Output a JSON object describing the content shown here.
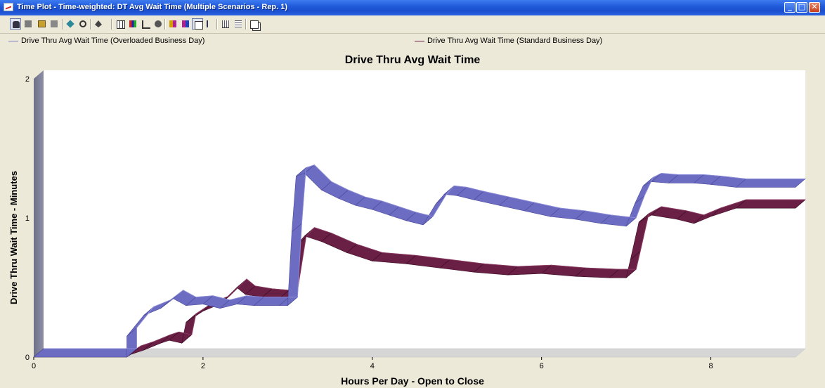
{
  "window": {
    "title": "Time Plot - Time-weighted: DT Avg Wait Time (Multiple Scenarios - Rep. 1)",
    "min_glyph": "_",
    "max_glyph": "□",
    "close_glyph": "✕"
  },
  "toolbar": {
    "icons": [
      "car-icon",
      "stop-icon",
      "open-icon",
      "gray-square-icon",
      "diamond-icon",
      "zoom-icon",
      "fill-icon",
      "grid-icon",
      "chart-color-icon",
      "axis-icon",
      "binoculars-icon",
      "palette-a-icon",
      "palette-b-icon",
      "properties-icon",
      "step-icon",
      "bars-icon",
      "list-icon",
      "copy-icon"
    ]
  },
  "colors": {
    "overloaded": "#6c6cc2",
    "standard": "#6a1f45",
    "plot_bg": "#ffffff",
    "floor": "#d8d8d8"
  },
  "chart_data": {
    "type": "line",
    "title": "Drive Thru Avg Wait Time",
    "xlabel": "Hours Per Day - Open to Close",
    "ylabel": "Drive Thru Wait Time - Minutes",
    "xlim": [
      0,
      9
    ],
    "ylim": [
      0,
      2
    ],
    "xticks": [
      "0",
      "2",
      "4",
      "6",
      "8"
    ],
    "yticks": [
      "0",
      "1",
      "2"
    ],
    "legend_position": "top",
    "series": [
      {
        "name": "Drive Thru Avg Wait Time (Overloaded Business Day)",
        "x": [
          0,
          1.1,
          1.1,
          1.3,
          1.5,
          1.65,
          1.8,
          2.0,
          2.2,
          2.4,
          2.6,
          2.9,
          3.0,
          3.05,
          3.1,
          3.2,
          3.4,
          3.6,
          3.8,
          4.0,
          4.2,
          4.4,
          4.6,
          4.75,
          4.85,
          5.0,
          5.2,
          5.5,
          5.8,
          6.1,
          6.4,
          6.7,
          7.0,
          7.1,
          7.2,
          7.3,
          7.5,
          7.8,
          8.0,
          8.3,
          9.0
        ],
        "y": [
          0,
          0,
          0.15,
          0.3,
          0.35,
          0.42,
          0.37,
          0.38,
          0.35,
          0.38,
          0.37,
          0.37,
          0.37,
          0.9,
          1.3,
          1.32,
          1.2,
          1.14,
          1.09,
          1.06,
          1.02,
          0.98,
          0.95,
          1.1,
          1.17,
          1.16,
          1.13,
          1.09,
          1.05,
          1.01,
          0.99,
          0.96,
          0.94,
          1.1,
          1.23,
          1.26,
          1.25,
          1.25,
          1.24,
          1.22,
          1.22
        ]
      },
      {
        "name": "Drive Thru Avg Wait Time (Standard Business Day)",
        "x": [
          0,
          1.1,
          1.15,
          1.3,
          1.5,
          1.6,
          1.75,
          1.8,
          2.0,
          2.2,
          2.4,
          2.5,
          2.7,
          2.9,
          3.0,
          3.1,
          3.2,
          3.4,
          3.7,
          4.0,
          4.4,
          4.8,
          5.2,
          5.6,
          6.0,
          6.4,
          6.8,
          7.0,
          7.05,
          7.15,
          7.3,
          7.6,
          7.8,
          8.0,
          8.3,
          9.0
        ],
        "y": [
          0,
          0,
          0.02,
          0.05,
          0.1,
          0.12,
          0.1,
          0.25,
          0.33,
          0.38,
          0.5,
          0.45,
          0.43,
          0.42,
          0.42,
          0.8,
          0.87,
          0.83,
          0.75,
          0.69,
          0.67,
          0.64,
          0.61,
          0.59,
          0.6,
          0.58,
          0.57,
          0.57,
          0.7,
          0.97,
          1.02,
          0.99,
          0.96,
          1.01,
          1.07,
          1.07
        ]
      }
    ]
  }
}
